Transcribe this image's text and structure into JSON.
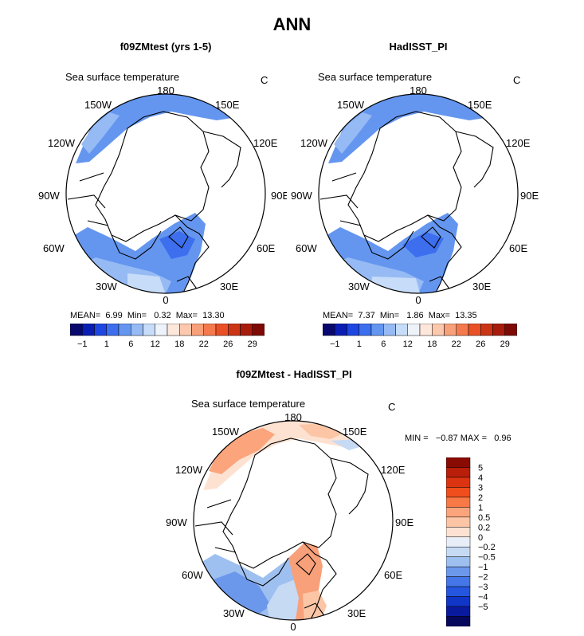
{
  "page": {
    "title": "ANN"
  },
  "panels": [
    {
      "title": "f09ZMtest (yrs 1-5)",
      "field": "Sea surface temperature",
      "units": "C",
      "lon_labels": [
        "180",
        "150E",
        "120E",
        "90E",
        "60E",
        "30E",
        "0",
        "30W",
        "60W",
        "90W",
        "120W",
        "150W"
      ],
      "stats": {
        "mean_label": "MEAN=",
        "mean": "6.99",
        "min_label": "Min=",
        "min": "0.32",
        "max_label": "Max=",
        "max": "13.30"
      }
    },
    {
      "title": "HadISST_PI",
      "field": "Sea surface temperature",
      "units": "C",
      "lon_labels": [
        "180",
        "150E",
        "120E",
        "90E",
        "60E",
        "30E",
        "0",
        "30W",
        "60W",
        "90W",
        "120W",
        "150W"
      ],
      "stats": {
        "mean_label": "MEAN=",
        "mean": "7.37",
        "min_label": "Min=",
        "min": "1.86",
        "max_label": "Max=",
        "max": "13.35"
      }
    },
    {
      "title": "f09ZMtest - HadISST_PI",
      "field": "Sea surface temperature",
      "units": "C",
      "lon_labels": [
        "180",
        "150E",
        "120E",
        "90E",
        "60E",
        "30E",
        "0",
        "30W",
        "60W",
        "90W",
        "120W",
        "150W"
      ],
      "stats": {
        "min_label": "MIN =",
        "min": "−0.87",
        "max_label": "MAX =",
        "max": "0.96"
      }
    }
  ],
  "colorbar_abs": {
    "colors": [
      "#08086e",
      "#0a1eb4",
      "#1e46e0",
      "#3c6eee",
      "#6496f0",
      "#96baf4",
      "#c6dcf8",
      "#eef2fa",
      "#fde6da",
      "#fcc8ae",
      "#f8a07a",
      "#f47a4e",
      "#ea5026",
      "#cc3416",
      "#a81c0e",
      "#7e0a06"
    ],
    "labels": [
      "−1",
      "1",
      "6",
      "12",
      "18",
      "22",
      "26",
      "29"
    ]
  },
  "colorbar_diff": {
    "colors": [
      "#8a0a04",
      "#b81e0a",
      "#dc3410",
      "#f04e1c",
      "#f87846",
      "#fca47c",
      "#fcc6a6",
      "#fde2d2",
      "#e8eef8",
      "#c6daf4",
      "#9ec0f0",
      "#6c98ec",
      "#4476e8",
      "#2456e0",
      "#1036c8",
      "#0a1a9e",
      "#06085c"
    ],
    "labels": [
      "5",
      "4",
      "3",
      "2",
      "1",
      "0.5",
      "0.2",
      "0",
      "−0.2",
      "−0.5",
      "−1",
      "−2",
      "−3",
      "−4",
      "−5"
    ]
  }
}
